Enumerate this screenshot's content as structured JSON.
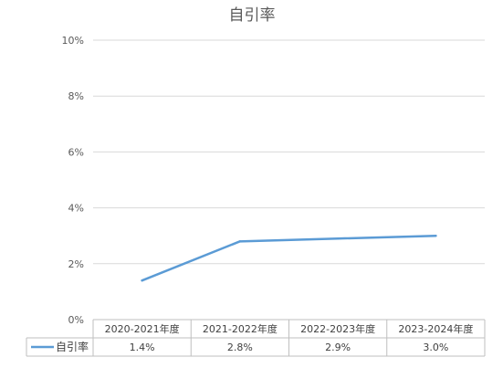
{
  "chart_data": {
    "type": "line",
    "title": "自引率",
    "categories": [
      "2020-2021年度",
      "2021-2022年度",
      "2022-2023年度",
      "2023-2024年度"
    ],
    "series": [
      {
        "name": "自引率",
        "values": [
          1.4,
          2.8,
          2.9,
          3.0
        ],
        "value_labels": [
          "1.4%",
          "2.8%",
          "2.9%",
          "3.0%"
        ],
        "color": "#5b9bd5"
      }
    ],
    "y_ticks": [
      "0%",
      "2%",
      "4%",
      "6%",
      "8%",
      "10%"
    ],
    "ylim": [
      0,
      10
    ],
    "xlabel": "",
    "ylabel": "",
    "grid": true,
    "legend": "data-table",
    "data_table": true
  }
}
